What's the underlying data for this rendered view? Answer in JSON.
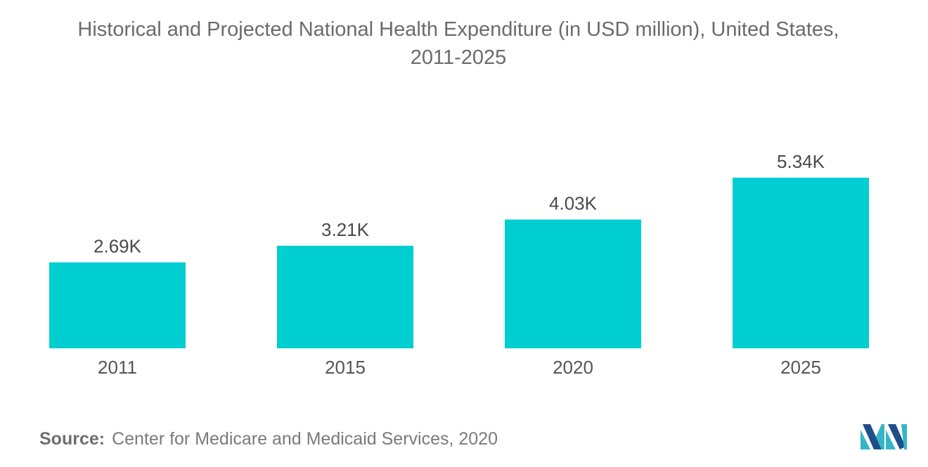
{
  "chart_data": {
    "type": "bar",
    "title_line1": "Historical and Projected National Health Expenditure (in USD million), United States,",
    "title_line2": "2011-2025",
    "categories": [
      "2011",
      "2015",
      "2020",
      "2025"
    ],
    "values": [
      2690,
      3210,
      4030,
      5340
    ],
    "data_labels": [
      "2.69K",
      "3.21K",
      "4.03K",
      "5.34K"
    ],
    "bar_color": "#00ced1",
    "ylim": [
      0,
      5340
    ],
    "grid": false,
    "legend": "none"
  },
  "source": {
    "label": "Source:",
    "text": "Center for Medicare and Medicaid Services, 2020"
  },
  "colors": {
    "title_text": "#6b6b6b",
    "axis_text": "#555555",
    "logo_dark": "#1f4f8b",
    "logo_light": "#35b6c8"
  },
  "logo": {
    "icon": "mordor-intelligence-logo-icon"
  }
}
